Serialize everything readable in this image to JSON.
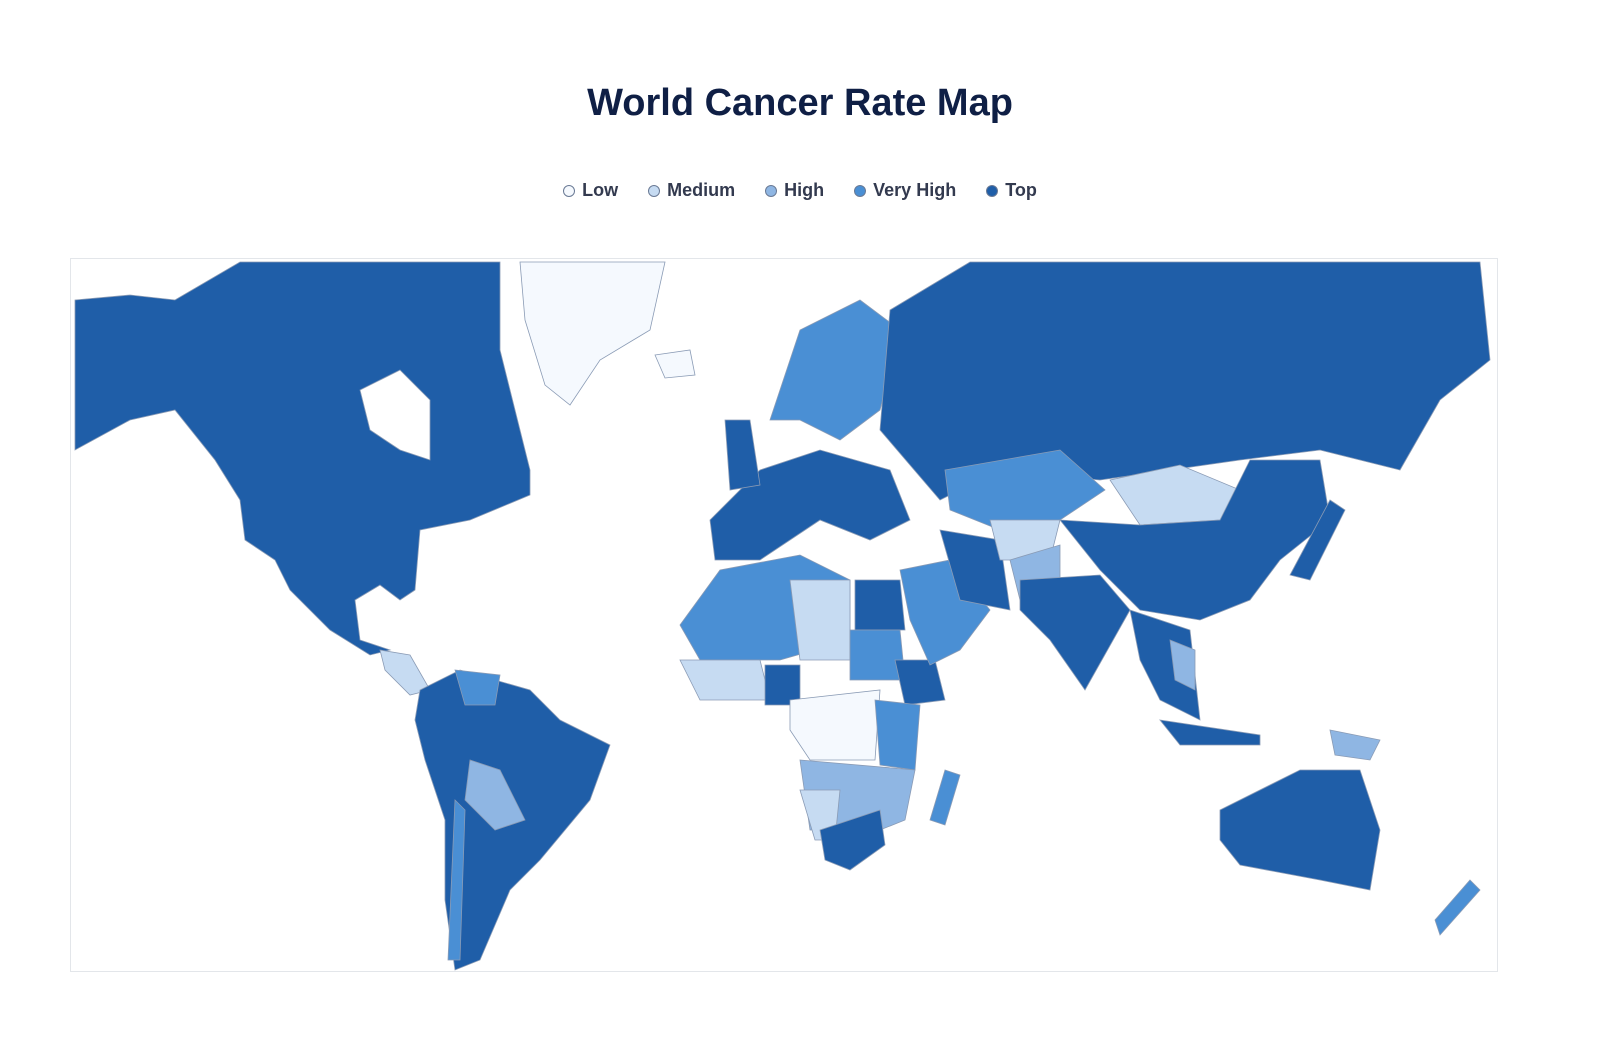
{
  "header": {
    "title": "World Cancer Rate Map"
  },
  "legend": {
    "items": [
      {
        "label": "Low",
        "color": "#f5f9fe"
      },
      {
        "label": "Medium",
        "color": "#c6dbf2"
      },
      {
        "label": "High",
        "color": "#8fb6e3"
      },
      {
        "label": "Very High",
        "color": "#4a8fd4"
      },
      {
        "label": "Top",
        "color": "#1f5ea8"
      }
    ]
  }
}
